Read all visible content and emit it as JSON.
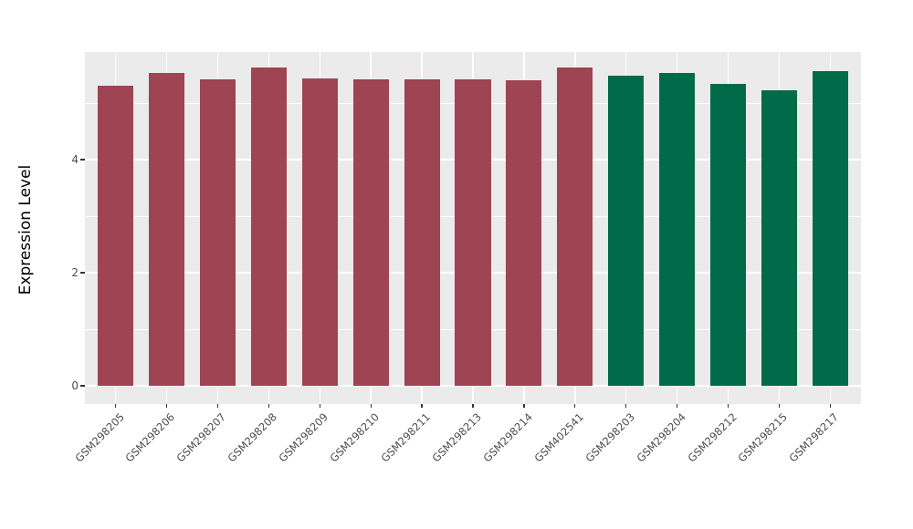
{
  "chart_data": {
    "type": "bar",
    "title": "",
    "xlabel": "",
    "ylabel": "Expression Level",
    "ylim": [
      -0.32,
      5.9
    ],
    "yticks_major": [
      0,
      2,
      4
    ],
    "yticks_minor": [
      1,
      3,
      5
    ],
    "grid": "on",
    "legend": "none",
    "colors": {
      "maroon_group": "#9E4452",
      "green_group": "#006B48",
      "panel_bg": "#EBEBEB",
      "gridline": "#FFFFFF",
      "tick_text": "#4D4D4D",
      "axis_title_text": "#000000",
      "tick_mark": "#333333"
    },
    "bars": [
      {
        "label": "GSM298205",
        "value": 5.31,
        "group": "maroon_group"
      },
      {
        "label": "GSM298206",
        "value": 5.53,
        "group": "maroon_group"
      },
      {
        "label": "GSM298207",
        "value": 5.42,
        "group": "maroon_group"
      },
      {
        "label": "GSM298208",
        "value": 5.63,
        "group": "maroon_group"
      },
      {
        "label": "GSM298209",
        "value": 5.44,
        "group": "maroon_group"
      },
      {
        "label": "GSM298210",
        "value": 5.42,
        "group": "maroon_group"
      },
      {
        "label": "GSM298211",
        "value": 5.42,
        "group": "maroon_group"
      },
      {
        "label": "GSM298213",
        "value": 5.42,
        "group": "maroon_group"
      },
      {
        "label": "GSM298214",
        "value": 5.4,
        "group": "maroon_group"
      },
      {
        "label": "GSM402541",
        "value": 5.63,
        "group": "maroon_group"
      },
      {
        "label": "GSM298203",
        "value": 5.48,
        "group": "green_group"
      },
      {
        "label": "GSM298204",
        "value": 5.54,
        "group": "green_group"
      },
      {
        "label": "GSM298212",
        "value": 5.34,
        "group": "green_group"
      },
      {
        "label": "GSM298215",
        "value": 5.23,
        "group": "green_group"
      },
      {
        "label": "GSM298217",
        "value": 5.56,
        "group": "green_group"
      }
    ]
  }
}
